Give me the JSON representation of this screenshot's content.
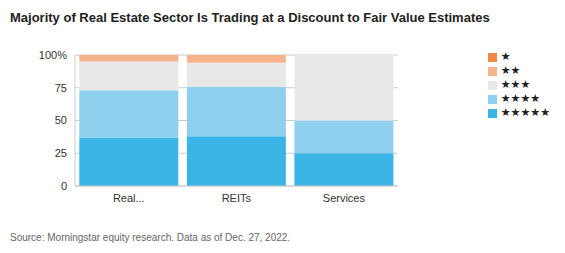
{
  "chart_data": {
    "type": "bar",
    "title": "Majority of Real Estate Sector Is Trading at a Discount to Fair Value Estimates",
    "source": "Source: Morningstar equity research. Data as of Dec. 27, 2022.",
    "categories": [
      "Real...",
      "REITs",
      "Services"
    ],
    "series": [
      {
        "name": "★★★★★",
        "color": "#3ab5e6",
        "values": [
          37,
          38,
          25
        ]
      },
      {
        "name": "★★★★",
        "color": "#8fd0ef",
        "values": [
          36,
          37.5,
          25
        ]
      },
      {
        "name": "★★★",
        "color": "#e8e8e8",
        "values": [
          22,
          18.5,
          50
        ]
      },
      {
        "name": "★★",
        "color": "#f5b48c",
        "values": [
          5,
          6,
          0
        ]
      },
      {
        "name": "★",
        "color": "#ee8a44",
        "values": [
          0,
          0,
          0
        ]
      }
    ],
    "ylim": [
      0,
      100
    ],
    "yticks": [
      0,
      25,
      50,
      75,
      {
        "value": 100,
        "label": "100%"
      }
    ],
    "stacked": true,
    "grid": true,
    "legend": "right"
  }
}
